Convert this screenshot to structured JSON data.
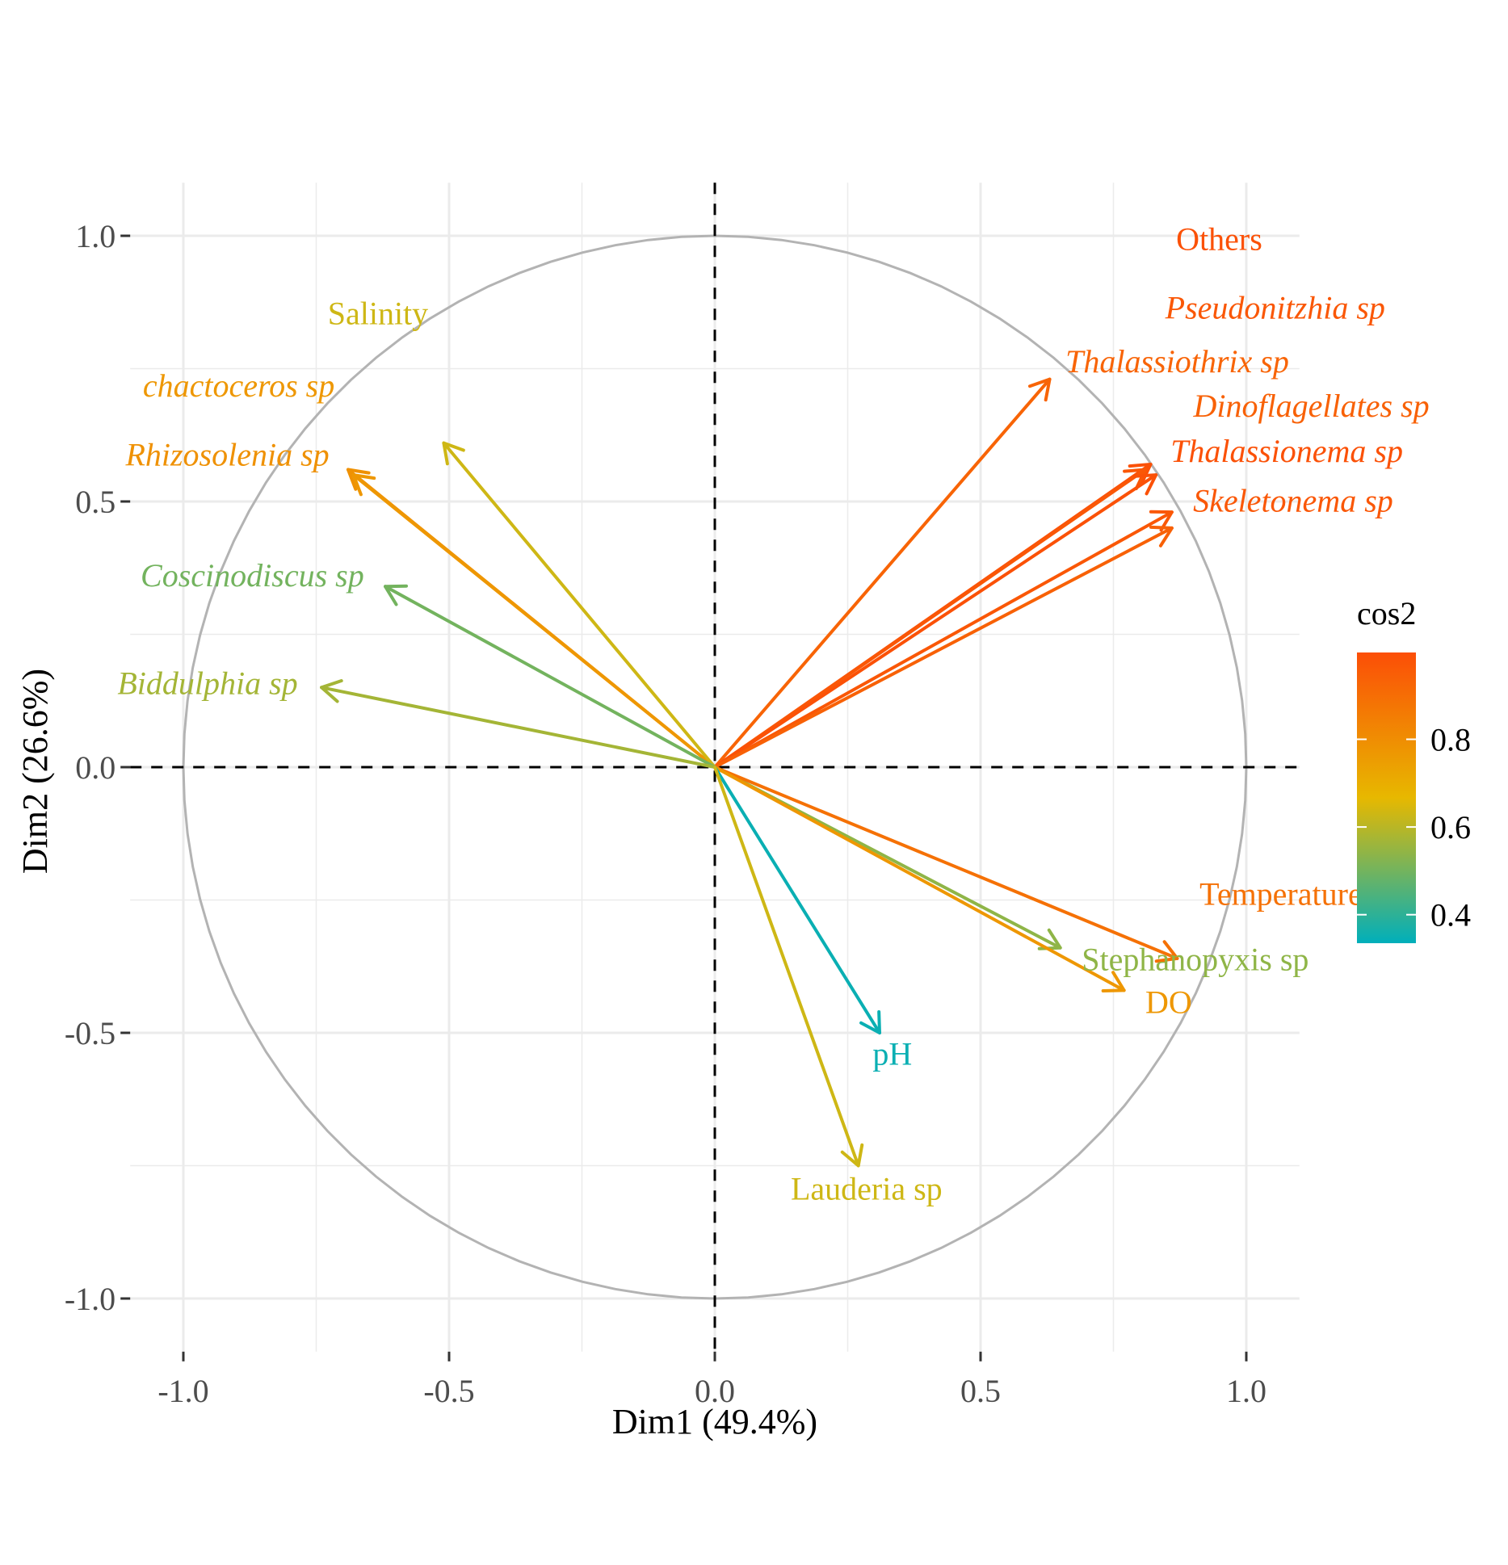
{
  "chart_data": {
    "type": "scatter",
    "subtype": "pca-variable-correlation-circle",
    "xlabel": "Dim1 (49.4%)",
    "ylabel": "Dim2 (26.6%)",
    "xlim": [
      -1.1,
      1.1
    ],
    "ylim": [
      -1.1,
      1.1
    ],
    "x_ticks": [
      {
        "value": -1.0,
        "label": "-1.0"
      },
      {
        "value": -0.5,
        "label": "-0.5"
      },
      {
        "value": 0.0,
        "label": "0.0"
      },
      {
        "value": 0.5,
        "label": "0.5"
      },
      {
        "value": 1.0,
        "label": "1.0"
      }
    ],
    "y_ticks": [
      {
        "value": 1.0,
        "label": "1.0"
      },
      {
        "value": 0.5,
        "label": "0.5"
      },
      {
        "value": 0.0,
        "label": "0.0"
      },
      {
        "value": -0.5,
        "label": "-0.5"
      },
      {
        "value": -1.0,
        "label": "-1.0"
      }
    ],
    "grid": true,
    "reference_lines": "dashed at x=0 and y=0",
    "unit_circle": true,
    "legend": {
      "title": "cos2",
      "placement": "right",
      "ticks": [
        "0.8",
        "0.6",
        "0.4"
      ],
      "tick_values": [
        0.8,
        0.6,
        0.4
      ],
      "range": [
        0.335,
        0.998
      ],
      "colors": [
        "#00AFBB",
        "#E7B800",
        "#FC4E07"
      ]
    },
    "variables": [
      {
        "label": "Thalassiothrix sp",
        "italic": true,
        "x": 0.63,
        "y": 0.73,
        "cos2": 0.93
      },
      {
        "label": "Thalassionema sp",
        "italic": true,
        "x": 0.82,
        "y": 0.57,
        "cos2": 0.99
      },
      {
        "label": "Pseudonitzhia sp",
        "italic": true,
        "x": 0.81,
        "y": 0.56,
        "cos2": 0.97
      },
      {
        "label": "Others",
        "italic": false,
        "x": 0.83,
        "y": 0.55,
        "cos2": 0.99
      },
      {
        "label": "Skeletonema sp",
        "italic": true,
        "x": 0.86,
        "y": 0.48,
        "cos2": 0.97
      },
      {
        "label": "Dinoflagellates sp",
        "italic": true,
        "x": 0.86,
        "y": 0.45,
        "cos2": 0.94
      },
      {
        "label": "Rhizosolenia sp",
        "italic": true,
        "x": -0.69,
        "y": 0.56,
        "cos2": 0.79
      },
      {
        "label": "chactoceros sp",
        "italic": true,
        "x": -0.68,
        "y": 0.55,
        "cos2": 0.77
      },
      {
        "label": "Salinity",
        "italic": false,
        "x": -0.51,
        "y": 0.61,
        "cos2": 0.63
      },
      {
        "label": "Coscinodiscus sp",
        "italic": true,
        "x": -0.62,
        "y": 0.34,
        "cos2": 0.5
      },
      {
        "label": "Biddulphia sp",
        "italic": true,
        "x": -0.74,
        "y": 0.15,
        "cos2": 0.57
      },
      {
        "label": "Stephanopyxis sp",
        "italic": false,
        "x": 0.65,
        "y": -0.34,
        "cos2": 0.54
      },
      {
        "label": "Temperature",
        "italic": false,
        "x": 0.87,
        "y": -0.36,
        "cos2": 0.89
      },
      {
        "label": "DO",
        "italic": false,
        "x": 0.77,
        "y": -0.42,
        "cos2": 0.77
      },
      {
        "label": "pH",
        "italic": false,
        "x": 0.31,
        "y": -0.5,
        "cos2": 0.35
      },
      {
        "label": "Lauderia sp",
        "italic": false,
        "x": 0.27,
        "y": -0.75,
        "cos2": 0.63
      }
    ]
  }
}
